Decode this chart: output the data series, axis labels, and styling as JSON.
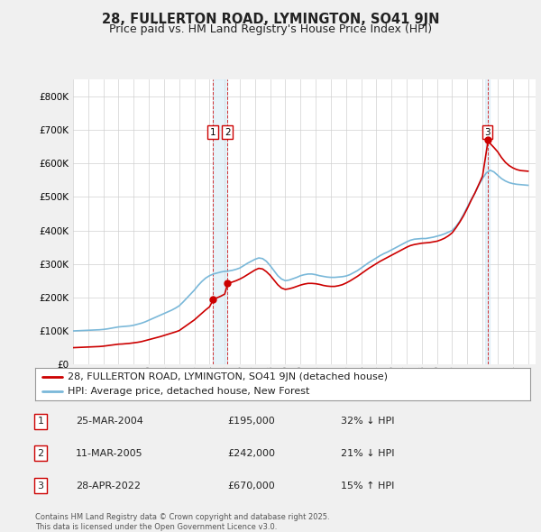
{
  "title": "28, FULLERTON ROAD, LYMINGTON, SO41 9JN",
  "subtitle": "Price paid vs. HM Land Registry's House Price Index (HPI)",
  "ylim": [
    0,
    850000
  ],
  "yticks": [
    0,
    100000,
    200000,
    300000,
    400000,
    500000,
    600000,
    700000,
    800000
  ],
  "ytick_labels": [
    "£0",
    "£100K",
    "£200K",
    "£300K",
    "£400K",
    "£500K",
    "£600K",
    "£700K",
    "£800K"
  ],
  "hpi_color": "#7ab8d9",
  "price_color": "#cc0000",
  "vline_color": "#cc0000",
  "sale_year_nums": [
    2004.23,
    2005.19,
    2022.32
  ],
  "sale_prices": [
    195000,
    242000,
    670000
  ],
  "sale_labels": [
    "1",
    "2",
    "3"
  ],
  "legend_price_label": "28, FULLERTON ROAD, LYMINGTON, SO41 9JN (detached house)",
  "legend_hpi_label": "HPI: Average price, detached house, New Forest",
  "ann_data": [
    [
      "1",
      "25-MAR-2004",
      "£195,000",
      "32% ↓ HPI"
    ],
    [
      "2",
      "11-MAR-2005",
      "£242,000",
      "21% ↓ HPI"
    ],
    [
      "3",
      "28-APR-2022",
      "£670,000",
      "15% ↑ HPI"
    ]
  ],
  "footnote": "Contains HM Land Registry data © Crown copyright and database right 2025.\nThis data is licensed under the Open Government Licence v3.0.",
  "background_color": "#f0f0f0",
  "plot_background": "#ffffff",
  "grid_color": "#d0d0d0",
  "title_fontsize": 10.5,
  "subtitle_fontsize": 9,
  "tick_fontsize": 7.5,
  "legend_fontsize": 8,
  "annotation_fontsize": 8
}
